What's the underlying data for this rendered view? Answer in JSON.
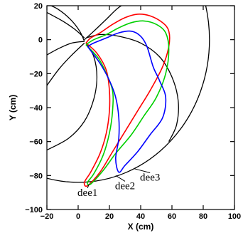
{
  "chart_data": {
    "type": "line",
    "title": "",
    "xlabel": "X (cm)",
    "ylabel": "Y (cm)",
    "xlim": [
      -20,
      100
    ],
    "ylim": [
      -100,
      20
    ],
    "xticks": [
      -20,
      0,
      20,
      40,
      60,
      80,
      100
    ],
    "yticks": [
      -100,
      -80,
      -60,
      -40,
      -20,
      0,
      20
    ],
    "xtick_labels": [
      "−20",
      "0",
      "20",
      "40",
      "60",
      "80",
      "100"
    ],
    "ytick_labels": [
      "−100",
      "−80",
      "−60",
      "−40",
      "−20",
      "0",
      "20"
    ],
    "grid": false,
    "outline": {
      "circle_center": [
        0,
        0
      ],
      "circle_radius": 84,
      "color": "#000000",
      "spirals": [
        [
          [
            4,
            0
          ],
          [
            10,
            5
          ],
          [
            18,
            12
          ],
          [
            26,
            19
          ],
          [
            34,
            23
          ]
        ],
        [
          [
            4,
            1
          ],
          [
            -2,
            6
          ],
          [
            -10,
            11
          ],
          [
            -20,
            16
          ]
        ],
        [
          [
            4,
            -1
          ],
          [
            -4,
            -2
          ],
          [
            -12,
            -5
          ],
          [
            -20,
            -9
          ]
        ],
        [
          [
            4,
            -2
          ],
          [
            -4,
            -9
          ],
          [
            -12,
            -17
          ],
          [
            -20,
            -27
          ]
        ],
        [
          [
            4,
            -1
          ],
          [
            1,
            5
          ],
          [
            -5,
            12
          ],
          [
            -13,
            18
          ],
          [
            -20,
            21
          ]
        ],
        [
          [
            5,
            1
          ],
          [
            14,
            3
          ],
          [
            26,
            2
          ],
          [
            40,
            -2
          ],
          [
            52,
            -10
          ],
          [
            60,
            -22
          ],
          [
            64,
            -36
          ],
          [
            63,
            -50
          ],
          [
            58,
            -60
          ]
        ],
        [
          [
            5,
            -2
          ],
          [
            10,
            -10
          ],
          [
            12,
            -22
          ],
          [
            10,
            -35
          ],
          [
            4,
            -48
          ],
          [
            -6,
            -58
          ],
          [
            -20,
            -65
          ]
        ]
      ]
    },
    "series": [
      {
        "name": "dee1",
        "color": "#ff0000",
        "points": [
          [
            5,
            -2
          ],
          [
            12,
            -8
          ],
          [
            18,
            -18
          ],
          [
            20,
            -30
          ],
          [
            20,
            -42
          ],
          [
            18,
            -55
          ],
          [
            14,
            -67
          ],
          [
            8,
            -78
          ],
          [
            4,
            -84
          ],
          [
            6,
            -86
          ],
          [
            14,
            -78
          ],
          [
            22,
            -66
          ],
          [
            30,
            -54
          ],
          [
            38,
            -42
          ],
          [
            46,
            -30
          ],
          [
            54,
            -16
          ],
          [
            58,
            -4
          ],
          [
            58,
            5
          ],
          [
            54,
            10
          ],
          [
            46,
            14
          ],
          [
            38,
            15
          ],
          [
            30,
            13
          ],
          [
            22,
            9
          ],
          [
            14,
            4
          ],
          [
            8,
            1
          ],
          [
            5,
            -2
          ]
        ]
      },
      {
        "name": "dee2",
        "color": "#00d000",
        "points": [
          [
            5,
            -3
          ],
          [
            13,
            -11
          ],
          [
            18,
            -20
          ],
          [
            22,
            -30
          ],
          [
            22,
            -42
          ],
          [
            20,
            -55
          ],
          [
            16,
            -68
          ],
          [
            10,
            -79
          ],
          [
            6,
            -84
          ],
          [
            8,
            -85
          ],
          [
            16,
            -77
          ],
          [
            24,
            -67
          ],
          [
            34,
            -56
          ],
          [
            42,
            -45
          ],
          [
            50,
            -34
          ],
          [
            56,
            -20
          ],
          [
            58,
            -6
          ],
          [
            56,
            4
          ],
          [
            50,
            9
          ],
          [
            42,
            11
          ],
          [
            34,
            10
          ],
          [
            26,
            7
          ],
          [
            18,
            3
          ],
          [
            10,
            0
          ],
          [
            5,
            -3
          ]
        ]
      },
      {
        "name": "dee3",
        "color": "#0000ff",
        "points": [
          [
            6,
            -4
          ],
          [
            14,
            -14
          ],
          [
            20,
            -24
          ],
          [
            24,
            -34
          ],
          [
            26,
            -46
          ],
          [
            26,
            -58
          ],
          [
            24,
            -70
          ],
          [
            26,
            -78
          ],
          [
            30,
            -74
          ],
          [
            38,
            -66
          ],
          [
            46,
            -56
          ],
          [
            54,
            -46
          ],
          [
            56,
            -34
          ],
          [
            52,
            -24
          ],
          [
            48,
            -16
          ],
          [
            44,
            -4
          ],
          [
            40,
            2
          ],
          [
            34,
            5
          ],
          [
            26,
            4
          ],
          [
            18,
            1
          ],
          [
            10,
            -2
          ],
          [
            6,
            -4
          ]
        ]
      }
    ],
    "annotations": [
      {
        "text": "dee1",
        "x": 6,
        "y": -92,
        "target": [
          7,
          -85
        ]
      },
      {
        "text": "dee2",
        "x": 30,
        "y": -88,
        "target": [
          24,
          -80
        ]
      },
      {
        "text": "dee3",
        "x": 46,
        "y": -83,
        "target": [
          36,
          -76
        ]
      }
    ]
  }
}
